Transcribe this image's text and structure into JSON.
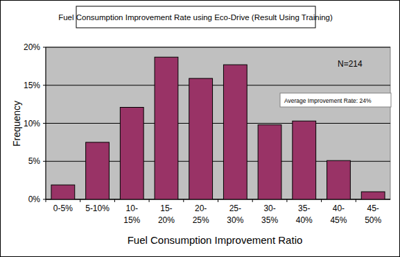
{
  "chart_data": {
    "type": "bar",
    "title": "Fuel Consumption Improvement Rate using Eco-Drive (Result Using Training)",
    "x_label": "Fuel Consumption Improvement Ratio",
    "y_label": "Frequency",
    "annotations": [
      "N=214",
      "Average Improvement Rate: 24%"
    ],
    "categories": [
      "0-5%",
      "5-10%",
      "10-15%",
      "15-20%",
      "20-25%",
      "25-30%",
      "30-35%",
      "35-40%",
      "40-45%",
      "45-50%"
    ],
    "values": [
      1.9,
      7.5,
      12.1,
      18.7,
      15.9,
      17.7,
      9.8,
      10.3,
      5.1,
      1.0
    ],
    "color": "#993366",
    "ylim": [
      0,
      20
    ],
    "yticks": [
      {
        "value": 0,
        "label": "0%"
      },
      {
        "value": 5,
        "label": "5%"
      },
      {
        "value": 10,
        "label": "10%"
      },
      {
        "value": 15,
        "label": "15%"
      },
      {
        "value": 20,
        "label": "20%"
      }
    ],
    "grid": true
  }
}
